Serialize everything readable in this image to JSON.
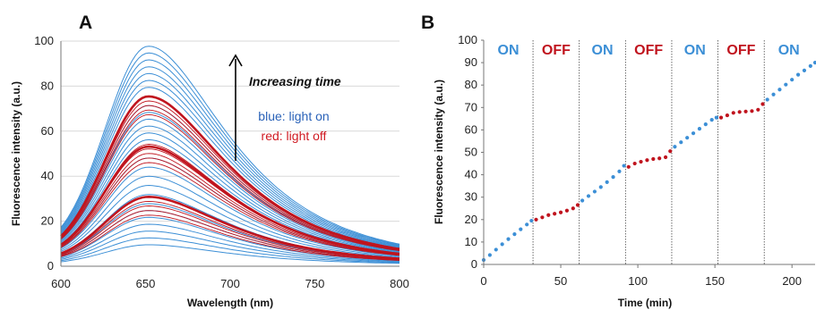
{
  "colors": {
    "blue": "#3c8fd6",
    "red": "#c0141e",
    "legend_blue": "#2a62b8",
    "legend_red": "#d01a22"
  },
  "chart_data": [
    {
      "panel": "A",
      "type": "line",
      "xlabel": "Wavelength (nm)",
      "ylabel": "Fluorescence intensity (a.u.)",
      "xlim": [
        600,
        800
      ],
      "ylim": [
        0,
        100
      ],
      "xticks": [
        "600",
        "650",
        "700",
        "750",
        "800"
      ],
      "yticks": [
        "0",
        "20",
        "40",
        "60",
        "80",
        "100"
      ],
      "peak_wavelength": 652,
      "arrow_label": "Increasing time",
      "legend": [
        {
          "label": "blue: light on",
          "color": "blue"
        },
        {
          "label": "red: light off",
          "color": "red"
        }
      ],
      "blue_peaks": [
        9,
        12,
        15,
        18,
        21,
        24,
        27,
        31,
        35,
        39,
        43,
        47,
        55,
        58,
        61,
        64,
        67,
        70,
        78,
        81,
        84,
        87,
        90,
        93,
        96
      ],
      "red_peaks": [
        22,
        24,
        26,
        28,
        30,
        45,
        47,
        49,
        51,
        53,
        66,
        68,
        70,
        72,
        74
      ],
      "thick_red_peaks": [
        30,
        52,
        74
      ]
    },
    {
      "panel": "B",
      "type": "scatter",
      "xlabel": "Time (min)",
      "ylabel": "Fluorescence intensity (a.u.)",
      "xlim": [
        0,
        215
      ],
      "ylim": [
        0,
        100
      ],
      "xticks": [
        "0",
        "50",
        "100",
        "150",
        "200"
      ],
      "yticks": [
        "0",
        "10",
        "20",
        "30",
        "40",
        "50",
        "60",
        "70",
        "80",
        "90",
        "100"
      ],
      "phase_boundaries": [
        32,
        62,
        92,
        122,
        152,
        182
      ],
      "phases": [
        {
          "label": "ON",
          "color": "blue",
          "x_center": 16
        },
        {
          "label": "OFF",
          "color": "red",
          "x_center": 47
        },
        {
          "label": "ON",
          "color": "blue",
          "x_center": 77
        },
        {
          "label": "OFF",
          "color": "red",
          "x_center": 107
        },
        {
          "label": "ON",
          "color": "blue",
          "x_center": 137
        },
        {
          "label": "OFF",
          "color": "red",
          "x_center": 167
        },
        {
          "label": "ON",
          "color": "blue",
          "x_center": 198
        }
      ],
      "series": [
        {
          "color": "blue",
          "x": [
            0,
            4,
            8,
            12,
            16,
            20,
            24,
            28,
            31
          ],
          "y": [
            2,
            4.2,
            6.6,
            9,
            11.3,
            13.5,
            15.7,
            17.8,
            19.5
          ]
        },
        {
          "color": "red",
          "x": [
            34,
            38,
            42,
            46,
            50,
            54,
            58,
            61
          ],
          "y": [
            20,
            21,
            22,
            22.6,
            23.2,
            24,
            25,
            26.5
          ]
        },
        {
          "color": "blue",
          "x": [
            64,
            68,
            72,
            76,
            80,
            84,
            88,
            91
          ],
          "y": [
            28.5,
            30.5,
            32.5,
            34.5,
            36.7,
            39,
            41.5,
            44
          ]
        },
        {
          "color": "red",
          "x": [
            94,
            98,
            102,
            106,
            110,
            114,
            118,
            121
          ],
          "y": [
            43.5,
            45,
            45.8,
            46.5,
            47,
            47.3,
            47.8,
            50.5
          ]
        },
        {
          "color": "blue",
          "x": [
            124,
            128,
            132,
            136,
            140,
            144,
            148,
            151
          ],
          "y": [
            52.5,
            54.5,
            56.5,
            58.5,
            60.5,
            62.5,
            64.5,
            65.5
          ]
        },
        {
          "color": "red",
          "x": [
            154,
            158,
            162,
            166,
            170,
            174,
            178,
            181
          ],
          "y": [
            65.5,
            66.5,
            67.6,
            68,
            68.2,
            68.4,
            69,
            71.5
          ]
        },
        {
          "color": "blue",
          "x": [
            184,
            188,
            192,
            196,
            200,
            204,
            208,
            212,
            215
          ],
          "y": [
            73.5,
            75.8,
            78,
            80.2,
            82.4,
            84.6,
            86.5,
            88.5,
            90
          ]
        }
      ]
    }
  ]
}
